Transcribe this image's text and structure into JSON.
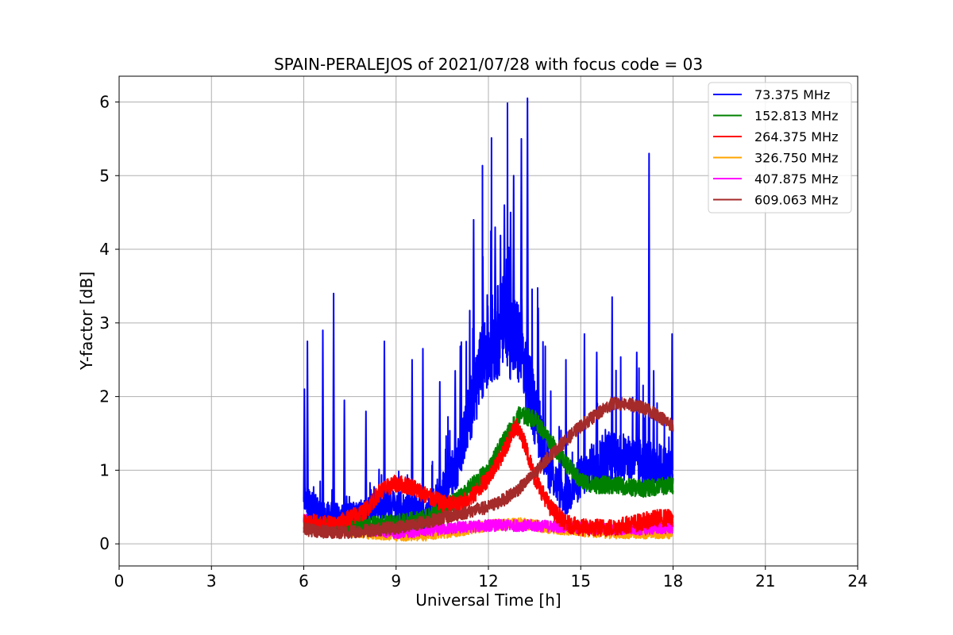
{
  "chart_data": {
    "type": "line",
    "title": "SPAIN-PERALEJOS of 2021/07/28 with focus code = 03",
    "xlabel": "Universal Time [h]",
    "ylabel": "Y-factor [dB]",
    "xlim": [
      0,
      24
    ],
    "ylim": [
      -0.3,
      6.35
    ],
    "xticks": [
      0,
      3,
      6,
      9,
      12,
      15,
      18,
      21,
      24
    ],
    "yticks": [
      0,
      1,
      2,
      3,
      4,
      5,
      6
    ],
    "grid": true,
    "legend_position": "top-right",
    "series": [
      {
        "name": " 73.375 MHz",
        "color": "#0000ff",
        "points": [
          [
            6.0,
            0.6
          ],
          [
            6.5,
            0.4
          ],
          [
            7.0,
            0.35
          ],
          [
            7.5,
            0.35
          ],
          [
            8.0,
            0.4
          ],
          [
            8.5,
            0.55
          ],
          [
            9.0,
            0.5
          ],
          [
            9.5,
            0.45
          ],
          [
            10.0,
            0.4
          ],
          [
            10.5,
            0.7
          ],
          [
            11.0,
            1.1
          ],
          [
            11.5,
            2.0
          ],
          [
            12.0,
            2.7
          ],
          [
            12.5,
            3.0
          ],
          [
            13.0,
            2.7
          ],
          [
            13.5,
            1.8
          ],
          [
            14.0,
            1.0
          ],
          [
            14.5,
            0.6
          ],
          [
            15.0,
            0.9
          ],
          [
            15.5,
            1.1
          ],
          [
            16.0,
            1.2
          ],
          [
            16.5,
            1.15
          ],
          [
            17.0,
            1.1
          ],
          [
            17.5,
            1.05
          ],
          [
            18.0,
            1.0
          ]
        ],
        "spikes": [
          [
            6.0,
            2.1
          ],
          [
            6.1,
            2.75
          ],
          [
            6.6,
            2.9
          ],
          [
            6.95,
            3.4
          ],
          [
            7.3,
            1.95
          ],
          [
            8.0,
            1.8
          ],
          [
            8.6,
            2.75
          ],
          [
            9.5,
            2.5
          ],
          [
            9.85,
            2.65
          ],
          [
            10.4,
            2.2
          ],
          [
            10.9,
            2.35
          ],
          [
            11.5,
            4.4
          ],
          [
            11.8,
            3.9
          ],
          [
            12.2,
            4.3
          ],
          [
            12.5,
            4.6
          ],
          [
            12.7,
            4.5
          ],
          [
            12.8,
            5.0
          ],
          [
            13.05,
            5.5
          ],
          [
            13.25,
            6.05
          ],
          [
            13.6,
            3.2
          ],
          [
            14.5,
            2.5
          ],
          [
            15.1,
            2.85
          ],
          [
            15.5,
            2.6
          ],
          [
            16.0,
            3.35
          ],
          [
            16.8,
            2.6
          ],
          [
            17.2,
            5.3
          ],
          [
            17.35,
            2.35
          ],
          [
            17.95,
            2.85
          ]
        ]
      },
      {
        "name": "152.813 MHz",
        "color": "#008000",
        "points": [
          [
            6.0,
            0.25
          ],
          [
            7.0,
            0.22
          ],
          [
            8.0,
            0.25
          ],
          [
            9.0,
            0.28
          ],
          [
            10.0,
            0.35
          ],
          [
            11.0,
            0.6
          ],
          [
            11.5,
            0.8
          ],
          [
            12.0,
            1.0
          ],
          [
            12.5,
            1.4
          ],
          [
            13.0,
            1.75
          ],
          [
            13.5,
            1.7
          ],
          [
            14.0,
            1.4
          ],
          [
            14.5,
            1.1
          ],
          [
            15.0,
            0.85
          ],
          [
            15.5,
            0.8
          ],
          [
            16.0,
            0.8
          ],
          [
            17.0,
            0.75
          ],
          [
            18.0,
            0.8
          ]
        ]
      },
      {
        "name": "264.375 MHz",
        "color": "#ff0000",
        "points": [
          [
            6.0,
            0.3
          ],
          [
            7.0,
            0.25
          ],
          [
            8.0,
            0.45
          ],
          [
            8.5,
            0.72
          ],
          [
            9.0,
            0.82
          ],
          [
            9.5,
            0.78
          ],
          [
            10.0,
            0.65
          ],
          [
            10.5,
            0.55
          ],
          [
            11.0,
            0.52
          ],
          [
            11.5,
            0.65
          ],
          [
            12.0,
            0.9
          ],
          [
            12.5,
            1.25
          ],
          [
            12.9,
            1.6
          ],
          [
            13.2,
            1.35
          ],
          [
            13.5,
            0.9
          ],
          [
            14.0,
            0.5
          ],
          [
            14.5,
            0.28
          ],
          [
            15.0,
            0.22
          ],
          [
            16.0,
            0.22
          ],
          [
            17.0,
            0.3
          ],
          [
            17.5,
            0.35
          ],
          [
            18.0,
            0.35
          ]
        ]
      },
      {
        "name": "326.750 MHz",
        "color": "#ffa500",
        "points": [
          [
            6.0,
            0.3
          ],
          [
            7.0,
            0.2
          ],
          [
            8.0,
            0.15
          ],
          [
            9.0,
            0.12
          ],
          [
            10.0,
            0.12
          ],
          [
            11.0,
            0.18
          ],
          [
            12.0,
            0.25
          ],
          [
            13.0,
            0.28
          ],
          [
            14.0,
            0.22
          ],
          [
            15.0,
            0.18
          ],
          [
            16.0,
            0.15
          ],
          [
            17.0,
            0.15
          ],
          [
            18.0,
            0.15
          ]
        ]
      },
      {
        "name": "407.875 MHz",
        "color": "#ff00ff",
        "points": [
          [
            6.0,
            0.33
          ],
          [
            7.0,
            0.3
          ],
          [
            8.0,
            0.2
          ],
          [
            9.0,
            0.15
          ],
          [
            10.0,
            0.18
          ],
          [
            11.0,
            0.22
          ],
          [
            12.0,
            0.25
          ],
          [
            13.0,
            0.25
          ],
          [
            14.0,
            0.24
          ],
          [
            15.0,
            0.22
          ],
          [
            16.0,
            0.2
          ],
          [
            17.0,
            0.2
          ],
          [
            18.0,
            0.22
          ]
        ]
      },
      {
        "name": "609.063 MHz",
        "color": "#a52a2a",
        "points": [
          [
            6.0,
            0.2
          ],
          [
            7.0,
            0.15
          ],
          [
            8.0,
            0.18
          ],
          [
            9.0,
            0.22
          ],
          [
            10.0,
            0.3
          ],
          [
            11.0,
            0.4
          ],
          [
            12.0,
            0.5
          ],
          [
            12.5,
            0.6
          ],
          [
            13.0,
            0.75
          ],
          [
            13.5,
            0.95
          ],
          [
            14.0,
            1.2
          ],
          [
            14.5,
            1.4
          ],
          [
            15.0,
            1.6
          ],
          [
            15.5,
            1.75
          ],
          [
            16.0,
            1.9
          ],
          [
            16.5,
            1.9
          ],
          [
            17.0,
            1.85
          ],
          [
            17.5,
            1.75
          ],
          [
            18.0,
            1.6
          ]
        ]
      }
    ]
  }
}
